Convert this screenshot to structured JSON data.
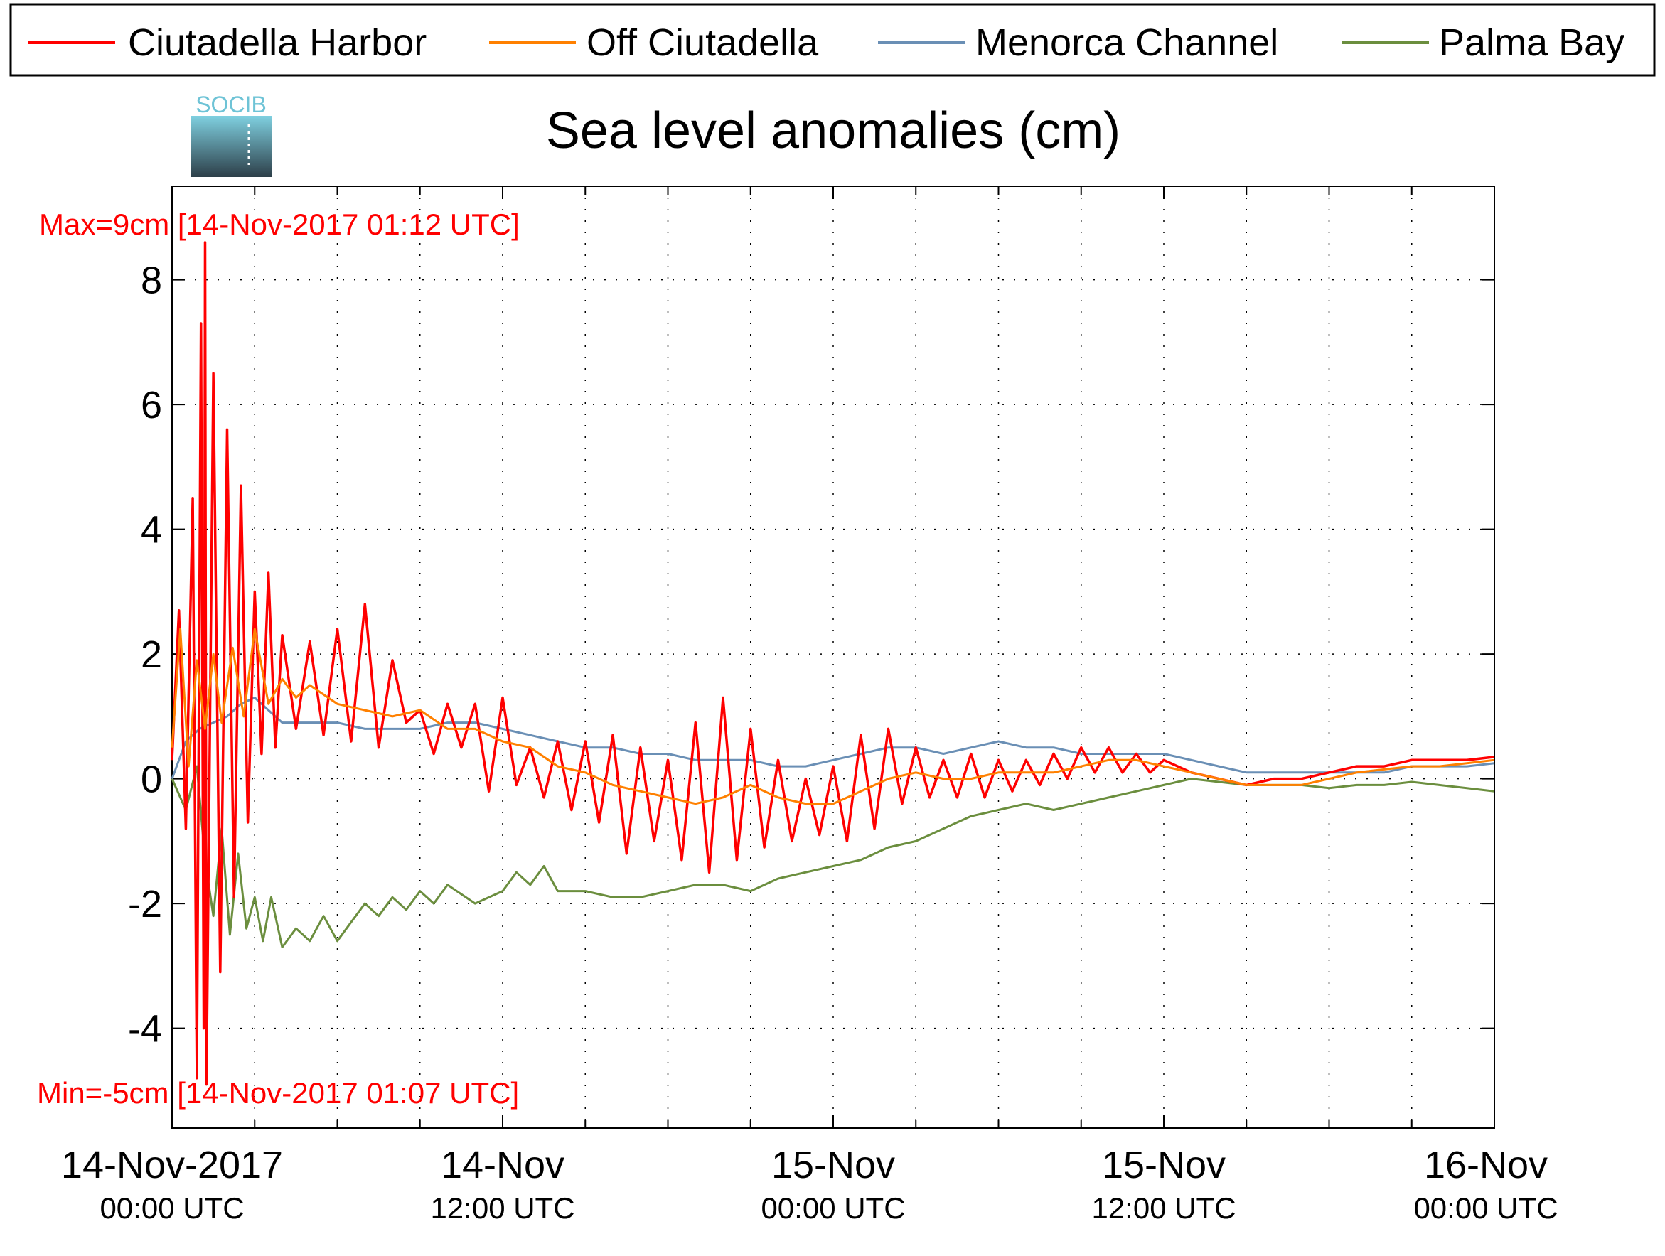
{
  "chart_data": {
    "type": "line",
    "title": "Sea level anomalies (cm)",
    "xlabel": "",
    "ylabel": "",
    "xlim": [
      0,
      48
    ],
    "ylim": [
      -5.6,
      9.5
    ],
    "yticks": [
      {
        "value": 8,
        "label": "8"
      },
      {
        "value": 6,
        "label": "6"
      },
      {
        "value": 4,
        "label": "4"
      },
      {
        "value": 2,
        "label": "2"
      },
      {
        "value": 0,
        "label": "0"
      },
      {
        "value": -2,
        "label": "-2"
      },
      {
        "value": -4,
        "label": "-4"
      }
    ],
    "xticks": [
      {
        "value": 0,
        "date": "14-Nov-2017",
        "time": "00:00 UTC"
      },
      {
        "value": 12,
        "date": "14-Nov",
        "time": "12:00 UTC"
      },
      {
        "value": 24,
        "date": "15-Nov",
        "time": "00:00 UTC"
      },
      {
        "value": 36,
        "date": "15-Nov",
        "time": "12:00 UTC"
      },
      {
        "value": 48,
        "date": "16-Nov",
        "time": "00:00 UTC"
      }
    ],
    "minor_xticks": [
      3,
      6,
      9,
      15,
      18,
      21,
      27,
      30,
      33,
      39,
      42,
      45
    ],
    "grid": true,
    "legend_position": "top",
    "annotations": {
      "max": "Max=9cm [14-Nov-2017 01:12 UTC]",
      "min": "Min=-5cm [14-Nov-2017 01:07 UTC]",
      "color": "#ff0000"
    },
    "series": [
      {
        "name": "Ciutadella Harbor",
        "color": "#ff0000",
        "points": [
          [
            0,
            0.3
          ],
          [
            0.25,
            2.7
          ],
          [
            0.5,
            -0.8
          ],
          [
            0.75,
            4.5
          ],
          [
            0.9,
            -4.8
          ],
          [
            1.05,
            7.3
          ],
          [
            1.15,
            -4.0
          ],
          [
            1.2,
            8.6
          ],
          [
            1.25,
            -4.9
          ],
          [
            1.5,
            6.5
          ],
          [
            1.75,
            -3.1
          ],
          [
            2.0,
            5.6
          ],
          [
            2.25,
            -1.9
          ],
          [
            2.5,
            4.7
          ],
          [
            2.75,
            -0.7
          ],
          [
            3.0,
            3.0
          ],
          [
            3.25,
            0.4
          ],
          [
            3.5,
            3.3
          ],
          [
            3.75,
            0.5
          ],
          [
            4.0,
            2.3
          ],
          [
            4.5,
            0.8
          ],
          [
            5.0,
            2.2
          ],
          [
            5.5,
            0.7
          ],
          [
            6.0,
            2.4
          ],
          [
            6.5,
            0.6
          ],
          [
            7.0,
            2.8
          ],
          [
            7.5,
            0.5
          ],
          [
            8.0,
            1.9
          ],
          [
            8.5,
            0.9
          ],
          [
            9.0,
            1.1
          ],
          [
            9.5,
            0.4
          ],
          [
            10.0,
            1.2
          ],
          [
            10.5,
            0.5
          ],
          [
            11.0,
            1.2
          ],
          [
            11.5,
            -0.2
          ],
          [
            12.0,
            1.3
          ],
          [
            12.5,
            -0.1
          ],
          [
            13.0,
            0.5
          ],
          [
            13.5,
            -0.3
          ],
          [
            14.0,
            0.6
          ],
          [
            14.5,
            -0.5
          ],
          [
            15.0,
            0.6
          ],
          [
            15.5,
            -0.7
          ],
          [
            16.0,
            0.7
          ],
          [
            16.5,
            -1.2
          ],
          [
            17.0,
            0.5
          ],
          [
            17.5,
            -1.0
          ],
          [
            18.0,
            0.3
          ],
          [
            18.5,
            -1.3
          ],
          [
            19.0,
            0.9
          ],
          [
            19.5,
            -1.5
          ],
          [
            20.0,
            1.3
          ],
          [
            20.5,
            -1.3
          ],
          [
            21.0,
            0.8
          ],
          [
            21.5,
            -1.1
          ],
          [
            22.0,
            0.3
          ],
          [
            22.5,
            -1.0
          ],
          [
            23.0,
            0.0
          ],
          [
            23.5,
            -0.9
          ],
          [
            24.0,
            0.2
          ],
          [
            24.5,
            -1.0
          ],
          [
            25.0,
            0.7
          ],
          [
            25.5,
            -0.8
          ],
          [
            26.0,
            0.8
          ],
          [
            26.5,
            -0.4
          ],
          [
            27.0,
            0.5
          ],
          [
            27.5,
            -0.3
          ],
          [
            28.0,
            0.3
          ],
          [
            28.5,
            -0.3
          ],
          [
            29.0,
            0.4
          ],
          [
            29.5,
            -0.3
          ],
          [
            30.0,
            0.3
          ],
          [
            30.5,
            -0.2
          ],
          [
            31.0,
            0.3
          ],
          [
            31.5,
            -0.1
          ],
          [
            32.0,
            0.4
          ],
          [
            32.5,
            0.0
          ],
          [
            33.0,
            0.5
          ],
          [
            33.5,
            0.1
          ],
          [
            34.0,
            0.5
          ],
          [
            34.5,
            0.1
          ],
          [
            35.0,
            0.4
          ],
          [
            35.5,
            0.1
          ],
          [
            36.0,
            0.3
          ],
          [
            37.0,
            0.1
          ],
          [
            38.0,
            0.0
          ],
          [
            39.0,
            -0.1
          ],
          [
            40.0,
            0.0
          ],
          [
            41.0,
            0.0
          ],
          [
            42.0,
            0.1
          ],
          [
            43.0,
            0.2
          ],
          [
            44.0,
            0.2
          ],
          [
            45.0,
            0.3
          ],
          [
            46.0,
            0.3
          ],
          [
            47.0,
            0.3
          ],
          [
            48.0,
            0.35
          ]
        ]
      },
      {
        "name": "Off Ciutadella",
        "color": "#ff8000",
        "points": [
          [
            0,
            0.5
          ],
          [
            0.3,
            2.4
          ],
          [
            0.6,
            0.2
          ],
          [
            0.9,
            1.9
          ],
          [
            1.2,
            0.8
          ],
          [
            1.5,
            2.0
          ],
          [
            1.8,
            0.9
          ],
          [
            2.2,
            2.1
          ],
          [
            2.6,
            1.0
          ],
          [
            3.0,
            2.4
          ],
          [
            3.5,
            1.2
          ],
          [
            4.0,
            1.6
          ],
          [
            4.5,
            1.3
          ],
          [
            5.0,
            1.5
          ],
          [
            6.0,
            1.2
          ],
          [
            7.0,
            1.1
          ],
          [
            8.0,
            1.0
          ],
          [
            9.0,
            1.1
          ],
          [
            10.0,
            0.8
          ],
          [
            11.0,
            0.8
          ],
          [
            12.0,
            0.6
          ],
          [
            13.0,
            0.5
          ],
          [
            14.0,
            0.2
          ],
          [
            15.0,
            0.1
          ],
          [
            16.0,
            -0.1
          ],
          [
            17.0,
            -0.2
          ],
          [
            18.0,
            -0.3
          ],
          [
            19.0,
            -0.4
          ],
          [
            20.0,
            -0.3
          ],
          [
            21.0,
            -0.1
          ],
          [
            22.0,
            -0.3
          ],
          [
            23.0,
            -0.4
          ],
          [
            24.0,
            -0.4
          ],
          [
            25.0,
            -0.2
          ],
          [
            26.0,
            0.0
          ],
          [
            27.0,
            0.1
          ],
          [
            28.0,
            0.0
          ],
          [
            29.0,
            0.0
          ],
          [
            30.0,
            0.1
          ],
          [
            31.0,
            0.1
          ],
          [
            32.0,
            0.1
          ],
          [
            33.0,
            0.2
          ],
          [
            34.0,
            0.3
          ],
          [
            35.0,
            0.3
          ],
          [
            36.0,
            0.2
          ],
          [
            37.0,
            0.1
          ],
          [
            38.0,
            0.0
          ],
          [
            39.0,
            -0.1
          ],
          [
            40.0,
            -0.1
          ],
          [
            41.0,
            -0.1
          ],
          [
            42.0,
            0.0
          ],
          [
            43.0,
            0.1
          ],
          [
            44.0,
            0.15
          ],
          [
            45.0,
            0.2
          ],
          [
            46.0,
            0.2
          ],
          [
            47.0,
            0.25
          ],
          [
            48.0,
            0.3
          ]
        ]
      },
      {
        "name": "Menorca Channel",
        "color": "#6a8fb5",
        "points": [
          [
            0,
            0.0
          ],
          [
            0.5,
            0.6
          ],
          [
            1.0,
            0.8
          ],
          [
            1.5,
            0.9
          ],
          [
            2.0,
            1.0
          ],
          [
            2.5,
            1.2
          ],
          [
            3.0,
            1.3
          ],
          [
            3.5,
            1.1
          ],
          [
            4.0,
            0.9
          ],
          [
            5.0,
            0.9
          ],
          [
            6.0,
            0.9
          ],
          [
            7.0,
            0.8
          ],
          [
            8.0,
            0.8
          ],
          [
            9.0,
            0.8
          ],
          [
            10.0,
            0.9
          ],
          [
            11.0,
            0.9
          ],
          [
            12.0,
            0.8
          ],
          [
            13.0,
            0.7
          ],
          [
            14.0,
            0.6
          ],
          [
            15.0,
            0.5
          ],
          [
            16.0,
            0.5
          ],
          [
            17.0,
            0.4
          ],
          [
            18.0,
            0.4
          ],
          [
            19.0,
            0.3
          ],
          [
            20.0,
            0.3
          ],
          [
            21.0,
            0.3
          ],
          [
            22.0,
            0.2
          ],
          [
            23.0,
            0.2
          ],
          [
            24.0,
            0.3
          ],
          [
            25.0,
            0.4
          ],
          [
            26.0,
            0.5
          ],
          [
            27.0,
            0.5
          ],
          [
            28.0,
            0.4
          ],
          [
            29.0,
            0.5
          ],
          [
            30.0,
            0.6
          ],
          [
            31.0,
            0.5
          ],
          [
            32.0,
            0.5
          ],
          [
            33.0,
            0.4
          ],
          [
            34.0,
            0.4
          ],
          [
            35.0,
            0.4
          ],
          [
            36.0,
            0.4
          ],
          [
            37.0,
            0.3
          ],
          [
            38.0,
            0.2
          ],
          [
            39.0,
            0.1
          ],
          [
            40.0,
            0.1
          ],
          [
            41.0,
            0.1
          ],
          [
            42.0,
            0.1
          ],
          [
            43.0,
            0.1
          ],
          [
            44.0,
            0.1
          ],
          [
            45.0,
            0.2
          ],
          [
            46.0,
            0.2
          ],
          [
            47.0,
            0.2
          ],
          [
            48.0,
            0.25
          ]
        ]
      },
      {
        "name": "Palma Bay",
        "color": "#6b8e3e",
        "points": [
          [
            0,
            0.0
          ],
          [
            0.5,
            -0.5
          ],
          [
            0.9,
            0.2
          ],
          [
            1.2,
            -1.3
          ],
          [
            1.5,
            -2.2
          ],
          [
            1.8,
            -0.8
          ],
          [
            2.1,
            -2.5
          ],
          [
            2.4,
            -1.2
          ],
          [
            2.7,
            -2.4
          ],
          [
            3.0,
            -1.9
          ],
          [
            3.3,
            -2.6
          ],
          [
            3.6,
            -1.9
          ],
          [
            4.0,
            -2.7
          ],
          [
            4.5,
            -2.4
          ],
          [
            5.0,
            -2.6
          ],
          [
            5.5,
            -2.2
          ],
          [
            6.0,
            -2.6
          ],
          [
            6.5,
            -2.3
          ],
          [
            7.0,
            -2.0
          ],
          [
            7.5,
            -2.2
          ],
          [
            8.0,
            -1.9
          ],
          [
            8.5,
            -2.1
          ],
          [
            9.0,
            -1.8
          ],
          [
            9.5,
            -2.0
          ],
          [
            10.0,
            -1.7
          ],
          [
            11.0,
            -2.0
          ],
          [
            12.0,
            -1.8
          ],
          [
            12.5,
            -1.5
          ],
          [
            13.0,
            -1.7
          ],
          [
            13.5,
            -1.4
          ],
          [
            14.0,
            -1.8
          ],
          [
            15.0,
            -1.8
          ],
          [
            16.0,
            -1.9
          ],
          [
            17.0,
            -1.9
          ],
          [
            18.0,
            -1.8
          ],
          [
            19.0,
            -1.7
          ],
          [
            20.0,
            -1.7
          ],
          [
            21.0,
            -1.8
          ],
          [
            22.0,
            -1.6
          ],
          [
            23.0,
            -1.5
          ],
          [
            24.0,
            -1.4
          ],
          [
            25.0,
            -1.3
          ],
          [
            26.0,
            -1.1
          ],
          [
            27.0,
            -1.0
          ],
          [
            28.0,
            -0.8
          ],
          [
            29.0,
            -0.6
          ],
          [
            30.0,
            -0.5
          ],
          [
            31.0,
            -0.4
          ],
          [
            32.0,
            -0.5
          ],
          [
            33.0,
            -0.4
          ],
          [
            34.0,
            -0.3
          ],
          [
            35.0,
            -0.2
          ],
          [
            36.0,
            -0.1
          ],
          [
            37.0,
            0.0
          ],
          [
            38.0,
            -0.05
          ],
          [
            39.0,
            -0.1
          ],
          [
            40.0,
            -0.1
          ],
          [
            41.0,
            -0.1
          ],
          [
            42.0,
            -0.15
          ],
          [
            43.0,
            -0.1
          ],
          [
            44.0,
            -0.1
          ],
          [
            45.0,
            -0.05
          ],
          [
            46.0,
            -0.1
          ],
          [
            47.0,
            -0.15
          ],
          [
            48.0,
            -0.2
          ]
        ]
      }
    ]
  },
  "logo": {
    "text": "SOCIB",
    "colors": [
      "#6ec3d6",
      "#3f5866"
    ]
  }
}
